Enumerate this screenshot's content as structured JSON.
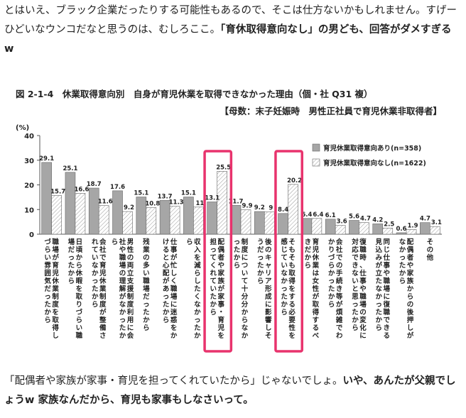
{
  "article": {
    "top_text_1": "とはいえ、ブラック企業だったりする可能性もあるので、そこは仕方ないかもしれません。すげーひどいなウンコだなと思うのは、むしろここ。",
    "top_text_2": "「育休取得意向なし」の男ども、回答がダメすぎるw",
    "bottom_text_1": "「配偶者や家族が家事・育児を担ってくれていたから」じゃないでしょ。",
    "bottom_text_2": "いや、あんたが父親でしょうw 家族なんだから、育児も家事もしなさいって。"
  },
  "colors": {
    "series1": "#a6a6a6",
    "highlight": "#e8336d"
  },
  "chart_data": {
    "type": "bar",
    "title": "図 2-1-4　休業取得意向別　自身が育児休業を取得できなかった理由（個・社 Q31 複）",
    "subtitle": "【母数：末子妊娠時　男性正社員で育児休業非取得者】",
    "ylabel": "(%)",
    "ylim": [
      0,
      40
    ],
    "yticks": [
      0,
      10,
      20,
      30,
      40
    ],
    "grid": false,
    "legend_position": "top-right",
    "highlighted_categories": [
      7,
      10
    ],
    "categories": [
      "職場が育児休業制度を取得しづらい雰囲気だったから",
      "日頃から休暇を取りづらい職場だったから",
      "会社で育児休業制度が整備されていなかったから",
      "男性の両立支援制度利用に会社や職場の理解がなかったから",
      "残業の多い職場だったから",
      "仕事が忙しく職場に迷惑をかけると心配があったから",
      "収入を減らしたくなかったから",
      "配偶者や家族が家事・育児を担ってくれていたから",
      "制度について十分分からなかったから",
      "後のキャリア形成に影響しそうだったから",
      "そもそも取得をする必要性を感じていなかったから",
      "育児休業は女性が取得するべきだから",
      "会社での手続き等が煩雑でわかりづらかったから",
      "復職時、仕事や職場の変化に対応できないと思ったから",
      "同じ仕事や職場に復職できる見込みが立たなかったから",
      "配偶者や家族からの後押しがなかったから",
      "その他"
    ],
    "series": [
      {
        "name": "育児休業取得意向あり(n=358)",
        "values": [
          29.1,
          25.1,
          18.7,
          17.6,
          15.1,
          13.7,
          15.1,
          13.1,
          11.7,
          9.2,
          8.4,
          6.4,
          6.1,
          5.6,
          4.2,
          0.6,
          4.7
        ]
      },
      {
        "name": "育児休業取得意向なし(n=1622)",
        "values": [
          15.7,
          16.6,
          11.6,
          9.2,
          10.8,
          11.3,
          11.0,
          25.5,
          9.9,
          9.0,
          20.2,
          6.4,
          3.6,
          4.7,
          2.5,
          1.9,
          3.1
        ]
      }
    ]
  }
}
